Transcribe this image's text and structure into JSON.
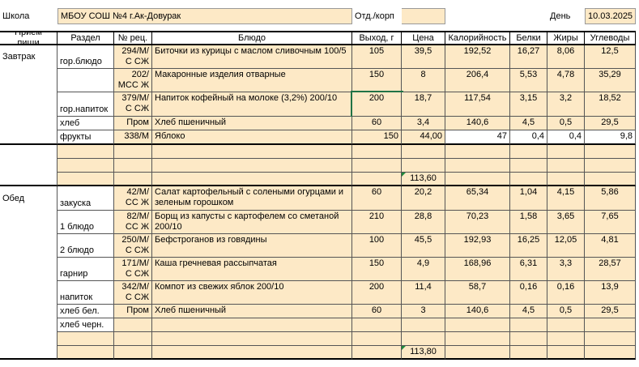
{
  "header": {
    "school_label": "Школа",
    "school": "МБОУ СОШ №4 г.Ак-Довурак",
    "dept_label": "Отд./корп",
    "day_label": "День",
    "date": "10.03.2025"
  },
  "table": {
    "columns": [
      "Прием пищи",
      "Раздел",
      "№ рец.",
      "Блюдо",
      "Выход, г",
      "Цена",
      "Калорийность",
      "Белки",
      "Жиры",
      "Углеводы"
    ],
    "rows": [
      [
        "Завтрак",
        "гор.блюдо",
        "294/М/С СЖ",
        "Биточки из курицы с маслом сливочным 100/5",
        "105",
        "39,5",
        "192,52",
        "16,27",
        "8,06",
        "12,5"
      ],
      [
        null,
        null,
        "202/МСС Ж",
        "Макаронные изделия отварные",
        "150",
        "8",
        "206,4",
        "5,53",
        "4,78",
        "35,29"
      ],
      [
        null,
        "гор.напиток",
        "379/М/С СЖ",
        "Напиток кофейный на молоке (3,2%) 200/10",
        "200",
        "18,7",
        "117,54",
        "3,15",
        "3,2",
        "18,52"
      ],
      [
        null,
        "хлеб",
        "Пром",
        "Хлеб пшеничный",
        "60",
        "3,4",
        "140,6",
        "4,5",
        "0,5",
        "29,5"
      ],
      [
        null,
        "фрукты",
        "338/М",
        "Яблоко",
        "150",
        "44,00",
        "47",
        "0,4",
        "0,4",
        "9,8"
      ],
      [
        null,
        null,
        null,
        null,
        null,
        null,
        null,
        null,
        null,
        null
      ],
      [
        null,
        null,
        null,
        null,
        null,
        null,
        null,
        null,
        null,
        null
      ],
      [
        null,
        null,
        null,
        null,
        null,
        "113,60",
        null,
        null,
        null,
        null
      ],
      [
        "Обед",
        "закуска",
        "42/М/СС Ж",
        "Салат картофельный с солеными огурцами и зеленым горошком",
        "60",
        "20,2",
        "65,34",
        "1,04",
        "4,15",
        "5,86"
      ],
      [
        null,
        "1 блюдо",
        "82/М/СС Ж",
        "Борщ из капусты с картофелем со сметаной 200/10",
        "210",
        "28,8",
        "70,23",
        "1,58",
        "3,65",
        "7,65"
      ],
      [
        null,
        "2 блюдо",
        "250/М/С СЖ",
        "Бефстроганов из говядины",
        "100",
        "45,5",
        "192,93",
        "16,25",
        "12,05",
        "4,81"
      ],
      [
        null,
        "гарнир",
        "171/М/С СЖ",
        "Каша гречневая рассыпчатая",
        "150",
        "4,9",
        "168,96",
        "6,31",
        "3,3",
        "28,57"
      ],
      [
        null,
        "напиток",
        "342/М/С СЖ",
        "Компот из свежих яблок 200/10",
        "200",
        "11,4",
        "58,7",
        "0,16",
        "0,16",
        "13,9"
      ],
      [
        null,
        "хлеб бел.",
        "Пром",
        "Хлеб пшеничный",
        "60",
        "3",
        "140,6",
        "4,5",
        "0,5",
        "29,5"
      ],
      [
        null,
        "хлеб черн.",
        null,
        null,
        null,
        null,
        null,
        null,
        null,
        null
      ],
      [
        null,
        null,
        null,
        null,
        null,
        null,
        null,
        null,
        null,
        null
      ],
      [
        null,
        null,
        null,
        null,
        null,
        "113,80",
        null,
        null,
        null,
        null
      ]
    ]
  }
}
